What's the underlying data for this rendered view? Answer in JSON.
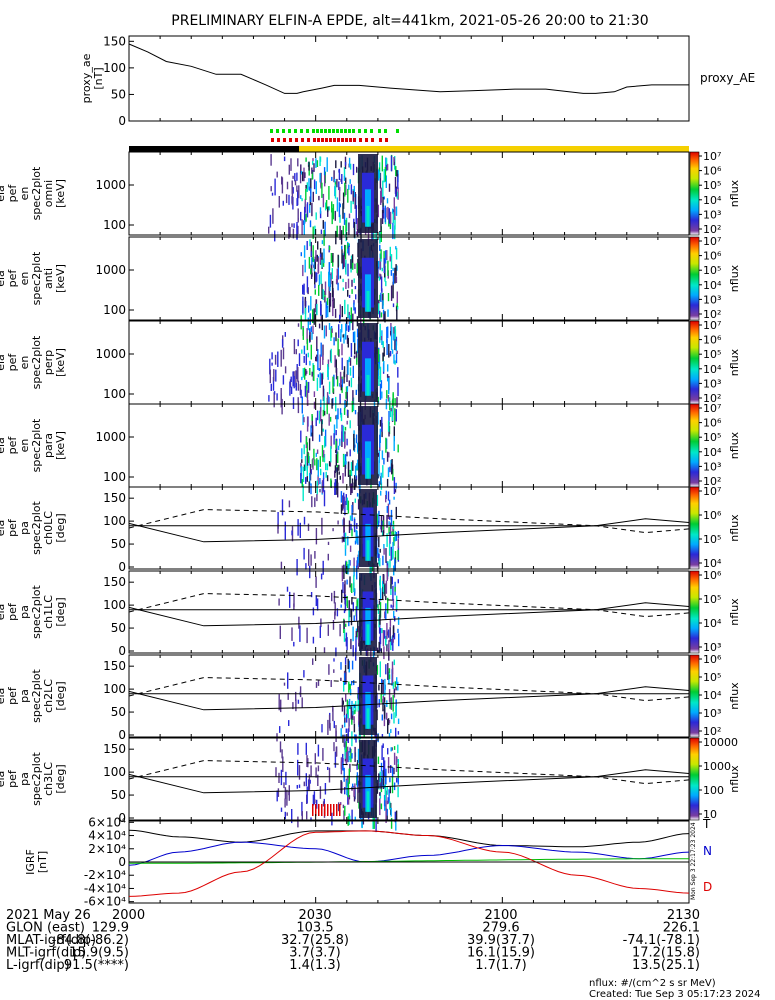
{
  "title": "PRELIMINARY ELFIN-A EPDE, alt=441km, 2021-05-26 20:00 to 21:30",
  "colors": {
    "axis": "#000000",
    "data_gap_bar": "#000000",
    "data_bar": "#f5d000",
    "flag_green": "#00dd00",
    "flag_red": "#dd0000",
    "bfield_dip": "#0000cc",
    "bfield_east": "#00bb00",
    "bfield_down": "#dd0000",
    "bfield_total": "#000000"
  },
  "chart_data": [
    {
      "type": "line",
      "panel": "proxy_ae",
      "ylabel": [
        "proxy_ae",
        "[nT]"
      ],
      "legend": "proxy_AE",
      "yticks": [
        "0",
        "50",
        "100",
        "150"
      ],
      "ylim": [
        0,
        160
      ],
      "xlim_min": [
        0,
        90
      ],
      "series": [
        {
          "name": "proxy_AE",
          "x": [
            0,
            3,
            6,
            10,
            14,
            18,
            20,
            22,
            25,
            27,
            28,
            31,
            33,
            37,
            42,
            50,
            55,
            62,
            67,
            73,
            75,
            78,
            80,
            84,
            90
          ],
          "y": [
            145,
            130,
            112,
            103,
            88,
            88,
            78,
            68,
            52,
            52,
            55,
            62,
            67,
            67,
            62,
            55,
            57,
            60,
            60,
            52,
            52,
            55,
            64,
            68,
            68
          ]
        }
      ]
    },
    {
      "type": "heatmap",
      "panel": "spectrogram",
      "ylabel": [
        "ela",
        "pef",
        "en",
        "spec2plot",
        "omni",
        "[keV]"
      ],
      "yticks": [
        "100",
        "1000"
      ],
      "colorbar_label": "nflux",
      "colorbar_ticks": [
        "10²",
        "10³",
        "10⁴",
        "10⁵",
        "10⁶",
        "10⁷"
      ]
    },
    {
      "type": "heatmap",
      "panel": "spectrogram",
      "ylabel": [
        "ela",
        "pef",
        "en",
        "spec2plot",
        "anti",
        "[keV]"
      ],
      "yticks": [
        "100",
        "1000"
      ],
      "colorbar_label": "nflux",
      "colorbar_ticks": [
        "10²",
        "10³",
        "10⁴",
        "10⁵",
        "10⁶",
        "10⁷"
      ]
    },
    {
      "type": "heatmap",
      "panel": "spectrogram",
      "ylabel": [
        "ela",
        "pef",
        "en",
        "spec2plot",
        "perp",
        "[keV]"
      ],
      "yticks": [
        "100",
        "1000"
      ],
      "colorbar_label": "nflux",
      "colorbar_ticks": [
        "10²",
        "10³",
        "10⁴",
        "10⁵",
        "10⁶",
        "10⁷"
      ]
    },
    {
      "type": "heatmap",
      "panel": "spectrogram",
      "ylabel": [
        "ela",
        "pef",
        "en",
        "spec2plot",
        "para",
        "[keV]"
      ],
      "yticks": [
        "100",
        "1000"
      ],
      "colorbar_label": "nflux",
      "colorbar_ticks": [
        "10²",
        "10³",
        "10⁴",
        "10⁵",
        "10⁶",
        "10⁷"
      ]
    },
    {
      "type": "heatmap",
      "panel": "pitch",
      "ylabel": [
        "ela",
        "pef",
        "pa",
        "spec2plot",
        "ch0LC",
        "[deg]"
      ],
      "yticks": [
        "0",
        "50",
        "100",
        "150"
      ],
      "colorbar_label": "nflux",
      "colorbar_ticks": [
        "10⁴",
        "10⁵",
        "10⁶",
        "10⁷"
      ],
      "solid_lc": [
        [
          0,
          95
        ],
        [
          12,
          55
        ],
        [
          30,
          60
        ],
        [
          50,
          75
        ],
        [
          75,
          90
        ],
        [
          83,
          105
        ],
        [
          90,
          97
        ]
      ],
      "dashed_lc": [
        [
          0,
          85
        ],
        [
          12,
          125
        ],
        [
          30,
          120
        ],
        [
          50,
          105
        ],
        [
          75,
          90
        ],
        [
          83,
          75
        ],
        [
          90,
          83
        ]
      ]
    },
    {
      "type": "heatmap",
      "panel": "pitch",
      "ylabel": [
        "ela",
        "pef",
        "pa",
        "spec2plot",
        "ch1LC",
        "[deg]"
      ],
      "yticks": [
        "0",
        "50",
        "100",
        "150"
      ],
      "colorbar_label": "nflux",
      "colorbar_ticks": [
        "10³",
        "10⁴",
        "10⁵",
        "10⁶"
      ],
      "solid_lc": [
        [
          0,
          95
        ],
        [
          12,
          55
        ],
        [
          30,
          60
        ],
        [
          50,
          75
        ],
        [
          75,
          90
        ],
        [
          83,
          105
        ],
        [
          90,
          97
        ]
      ],
      "dashed_lc": [
        [
          0,
          85
        ],
        [
          12,
          125
        ],
        [
          30,
          120
        ],
        [
          50,
          105
        ],
        [
          75,
          90
        ],
        [
          83,
          75
        ],
        [
          90,
          83
        ]
      ]
    },
    {
      "type": "heatmap",
      "panel": "pitch",
      "ylabel": [
        "ela",
        "pef",
        "pa",
        "spec2plot",
        "ch2LC",
        "[deg]"
      ],
      "yticks": [
        "0",
        "50",
        "100",
        "150"
      ],
      "colorbar_label": "nflux",
      "colorbar_ticks": [
        "10²",
        "10³",
        "10⁴",
        "10⁵",
        "10⁶"
      ],
      "solid_lc": [
        [
          0,
          95
        ],
        [
          12,
          55
        ],
        [
          30,
          60
        ],
        [
          50,
          75
        ],
        [
          75,
          90
        ],
        [
          83,
          105
        ],
        [
          90,
          97
        ]
      ],
      "dashed_lc": [
        [
          0,
          85
        ],
        [
          12,
          125
        ],
        [
          30,
          120
        ],
        [
          50,
          105
        ],
        [
          75,
          90
        ],
        [
          83,
          75
        ],
        [
          90,
          83
        ]
      ]
    },
    {
      "type": "heatmap",
      "panel": "pitch",
      "ylabel": [
        "ela",
        "pef",
        "pa",
        "spec2plot",
        "ch3LC",
        "[deg]"
      ],
      "yticks": [
        "0",
        "50",
        "100",
        "150"
      ],
      "colorbar_label": "nflux",
      "colorbar_ticks": [
        "10",
        "100",
        "1000",
        "10000"
      ],
      "solid_lc": [
        [
          0,
          95
        ],
        [
          12,
          55
        ],
        [
          30,
          60
        ],
        [
          50,
          75
        ],
        [
          75,
          90
        ],
        [
          83,
          105
        ],
        [
          90,
          97
        ]
      ],
      "dashed_lc": [
        [
          0,
          85
        ],
        [
          12,
          125
        ],
        [
          30,
          120
        ],
        [
          50,
          105
        ],
        [
          75,
          90
        ],
        [
          83,
          75
        ],
        [
          90,
          83
        ]
      ]
    },
    {
      "type": "line",
      "panel": "bfield",
      "ylabel": [
        "IGRF",
        "[nT]"
      ],
      "yticks": [
        "-6×10⁴",
        "-4×10⁴",
        "-2×10⁴",
        "0",
        "2×10⁴",
        "4×10⁴",
        "6×10⁴"
      ],
      "ylim": [
        -62000,
        62000
      ],
      "legend": [
        "T",
        "N",
        "D"
      ],
      "side_note": "Mon Sep 3 22:17:23 2024",
      "series": [
        {
          "name": "T",
          "x": [
            0,
            8,
            18,
            30,
            38,
            48,
            60,
            72,
            82,
            90
          ],
          "y": [
            48000,
            38000,
            30000,
            47000,
            47000,
            40000,
            25000,
            23000,
            30000,
            43000
          ]
        },
        {
          "name": "N",
          "x": [
            0,
            8,
            18,
            30,
            38,
            48,
            60,
            72,
            82,
            90
          ],
          "y": [
            -5000,
            15000,
            30000,
            20000,
            0,
            10000,
            25000,
            15000,
            5000,
            15000
          ]
        },
        {
          "name": "",
          "x": [
            0,
            90
          ],
          "y": [
            -2000,
            5000
          ]
        },
        {
          "name": "D",
          "x": [
            0,
            8,
            18,
            30,
            38,
            48,
            60,
            72,
            82,
            90
          ],
          "y": [
            -52000,
            -47000,
            -15000,
            45000,
            47000,
            40000,
            15000,
            -20000,
            -40000,
            -47000
          ]
        }
      ]
    }
  ],
  "orbit_table": {
    "rows": [
      {
        "label": "2021 May 26",
        "values": [
          "2000",
          "2030",
          "2100",
          "2130"
        ]
      },
      {
        "label": "GLON (east)",
        "values": [
          "129.9",
          "103.5",
          "279.6",
          "226.1"
        ]
      },
      {
        "label": "MLAT-igrf(dip)",
        "values": [
          "-84.8(-86.2)",
          "32.7(25.8)",
          "39.9(37.7)",
          "-74.1(-78.1)"
        ]
      },
      {
        "label": "MLT-igrf(dip)",
        "values": [
          "15.9(9.5)",
          "3.7(3.7)",
          "16.1(15.9)",
          "17.2(15.8)"
        ]
      },
      {
        "label": "L-igrf(dip)",
        "values": [
          "91.5(****)",
          "1.4(1.3)",
          "1.7(1.7)",
          "13.5(25.1)"
        ]
      }
    ]
  },
  "footer": {
    "units": "nflux: #/(cm^2 s sr MeV)",
    "created": "Created: Tue Sep  3 05:17:23 2024"
  }
}
